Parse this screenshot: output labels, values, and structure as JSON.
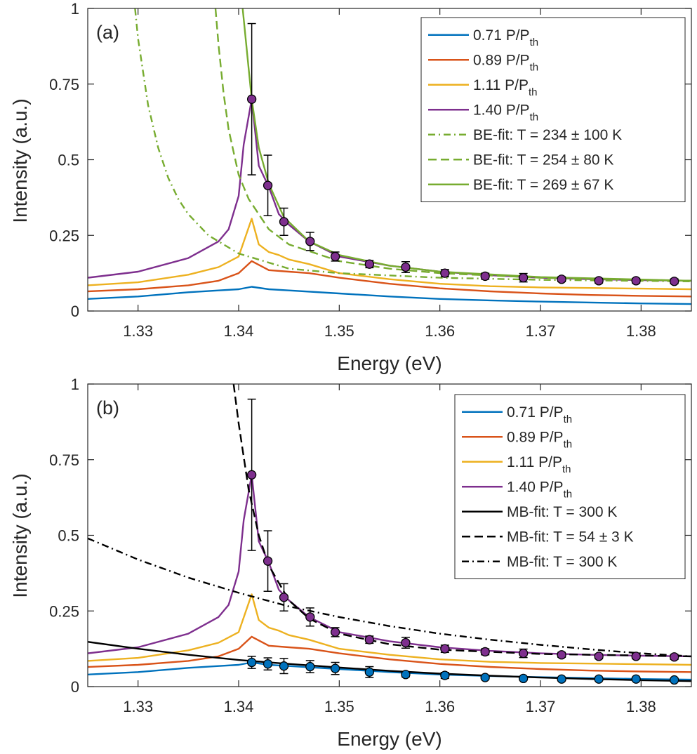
{
  "chart_data": [
    {
      "type": "line",
      "panel_label": "(a)",
      "xlabel": "Energy (eV)",
      "ylabel": "Intensity (a.u.)",
      "xlim": [
        1.325,
        1.385
      ],
      "ylim": [
        0,
        1
      ],
      "xticks": [
        1.33,
        1.34,
        1.35,
        1.36,
        1.37,
        1.38
      ],
      "xtick_labels": [
        "1.33",
        "1.34",
        "1.35",
        "1.36",
        "1.37",
        "1.38"
      ],
      "yticks": [
        0,
        0.25,
        0.5,
        0.75,
        1
      ],
      "ytick_labels": [
        "0",
        "0.25",
        "0.5",
        "0.75",
        "1"
      ],
      "grid": false,
      "legend_position": "top-right",
      "series": [
        {
          "name": "0.71 P/P",
          "subscript": "th",
          "color": "#0072BD",
          "style": "solid",
          "x": [
            1.325,
            1.33,
            1.335,
            1.338,
            1.34,
            1.3413,
            1.343,
            1.345,
            1.35,
            1.355,
            1.36,
            1.365,
            1.37,
            1.375,
            1.38,
            1.385
          ],
          "y": [
            0.04,
            0.048,
            0.062,
            0.068,
            0.072,
            0.08,
            0.072,
            0.068,
            0.058,
            0.048,
            0.04,
            0.035,
            0.031,
            0.028,
            0.025,
            0.023
          ]
        },
        {
          "name": "0.89 P/P",
          "subscript": "th",
          "color": "#D95319",
          "style": "solid",
          "x": [
            1.325,
            1.33,
            1.335,
            1.338,
            1.34,
            1.3413,
            1.343,
            1.345,
            1.347,
            1.35,
            1.355,
            1.36,
            1.365,
            1.37,
            1.375,
            1.38,
            1.385
          ],
          "y": [
            0.065,
            0.072,
            0.085,
            0.1,
            0.125,
            0.165,
            0.135,
            0.13,
            0.125,
            0.11,
            0.09,
            0.075,
            0.065,
            0.058,
            0.053,
            0.05,
            0.048
          ]
        },
        {
          "name": "1.11 P/P",
          "subscript": "th",
          "color": "#EDB120",
          "style": "solid",
          "x": [
            1.325,
            1.33,
            1.335,
            1.338,
            1.34,
            1.3413,
            1.342,
            1.343,
            1.344,
            1.345,
            1.347,
            1.35,
            1.355,
            1.36,
            1.365,
            1.37,
            1.375,
            1.38,
            1.385
          ],
          "y": [
            0.085,
            0.095,
            0.12,
            0.145,
            0.18,
            0.305,
            0.22,
            0.195,
            0.185,
            0.17,
            0.155,
            0.125,
            0.105,
            0.09,
            0.082,
            0.078,
            0.076,
            0.074,
            0.072
          ]
        },
        {
          "name": "1.40 P/P",
          "subscript": "th",
          "color": "#7E2F8E",
          "style": "solid",
          "x": [
            1.325,
            1.33,
            1.335,
            1.338,
            1.339,
            1.34,
            1.3405,
            1.3413,
            1.342,
            1.343,
            1.344,
            1.345,
            1.347,
            1.35,
            1.355,
            1.36,
            1.365,
            1.37,
            1.375,
            1.38,
            1.385
          ],
          "y": [
            0.11,
            0.13,
            0.175,
            0.23,
            0.27,
            0.38,
            0.55,
            0.7,
            0.48,
            0.41,
            0.32,
            0.285,
            0.23,
            0.18,
            0.15,
            0.13,
            0.118,
            0.11,
            0.105,
            0.102,
            0.1
          ]
        },
        {
          "name": "BE-fit: T = 234 ± 100 K",
          "color": "#77AC30",
          "style": "dashdot",
          "x": [
            1.3297,
            1.33,
            1.331,
            1.332,
            1.333,
            1.334,
            1.335,
            1.337,
            1.34,
            1.345,
            1.35,
            1.36,
            1.37,
            1.385
          ],
          "y": [
            1.0,
            0.9,
            0.68,
            0.54,
            0.44,
            0.37,
            0.32,
            0.25,
            0.19,
            0.14,
            0.125,
            0.11,
            0.103,
            0.098
          ]
        },
        {
          "name": "BE-fit: T = 254 ± 80 K",
          "color": "#77AC30",
          "style": "dashed",
          "x": [
            1.3377,
            1.338,
            1.3385,
            1.339,
            1.34,
            1.341,
            1.343,
            1.345,
            1.35,
            1.355,
            1.36,
            1.37,
            1.385
          ],
          "y": [
            1.0,
            0.88,
            0.72,
            0.6,
            0.45,
            0.37,
            0.27,
            0.22,
            0.165,
            0.14,
            0.125,
            0.11,
            0.1
          ]
        },
        {
          "name": "BE-fit: T = 269 ± 67 K",
          "color": "#77AC30",
          "style": "solid",
          "x": [
            1.3404,
            1.3407,
            1.341,
            1.3413,
            1.342,
            1.343,
            1.3445,
            1.347,
            1.35,
            1.355,
            1.36,
            1.37,
            1.385
          ],
          "y": [
            1.0,
            0.9,
            0.8,
            0.7,
            0.54,
            0.42,
            0.31,
            0.23,
            0.185,
            0.15,
            0.13,
            0.112,
            0.1
          ]
        }
      ],
      "points": {
        "color": "#7E2F8E",
        "x": [
          1.3413,
          1.3429,
          1.3445,
          1.3471,
          1.3496,
          1.353,
          1.3566,
          1.3605,
          1.3645,
          1.3683,
          1.3721,
          1.3758,
          1.3795,
          1.3833
        ],
        "y": [
          0.7,
          0.415,
          0.295,
          0.23,
          0.18,
          0.155,
          0.145,
          0.125,
          0.115,
          0.11,
          0.105,
          0.1,
          0.1,
          0.098
        ],
        "err": [
          0.25,
          0.1,
          0.045,
          0.03,
          0.015,
          0.012,
          0.018,
          0.012,
          0.01,
          0.014,
          0.008,
          0.008,
          0.008,
          0.008
        ]
      }
    },
    {
      "type": "line",
      "panel_label": "(b)",
      "xlabel": "Energy (eV)",
      "ylabel": "Intensity (a.u.)",
      "xlim": [
        1.325,
        1.385
      ],
      "ylim": [
        0,
        1
      ],
      "xticks": [
        1.33,
        1.34,
        1.35,
        1.36,
        1.37,
        1.38
      ],
      "xtick_labels": [
        "1.33",
        "1.34",
        "1.35",
        "1.36",
        "1.37",
        "1.38"
      ],
      "yticks": [
        0,
        0.25,
        0.5,
        0.75,
        1
      ],
      "ytick_labels": [
        "0",
        "0.25",
        "0.5",
        "0.75",
        "1"
      ],
      "grid": false,
      "legend_position": "top-right",
      "series": [
        {
          "name": "0.71 P/P",
          "subscript": "th",
          "color": "#0072BD",
          "style": "solid",
          "x": [
            1.325,
            1.33,
            1.335,
            1.338,
            1.34,
            1.3413,
            1.343,
            1.345,
            1.35,
            1.355,
            1.36,
            1.365,
            1.37,
            1.375,
            1.38,
            1.385
          ],
          "y": [
            0.04,
            0.048,
            0.062,
            0.068,
            0.072,
            0.08,
            0.072,
            0.068,
            0.058,
            0.048,
            0.04,
            0.035,
            0.031,
            0.028,
            0.025,
            0.023
          ]
        },
        {
          "name": "0.89 P/P",
          "subscript": "th",
          "color": "#D95319",
          "style": "solid",
          "x": [
            1.325,
            1.33,
            1.335,
            1.338,
            1.34,
            1.3413,
            1.343,
            1.345,
            1.347,
            1.35,
            1.355,
            1.36,
            1.365,
            1.37,
            1.375,
            1.38,
            1.385
          ],
          "y": [
            0.065,
            0.072,
            0.085,
            0.1,
            0.125,
            0.165,
            0.135,
            0.13,
            0.125,
            0.11,
            0.09,
            0.075,
            0.065,
            0.058,
            0.053,
            0.05,
            0.048
          ]
        },
        {
          "name": "1.11 P/P",
          "subscript": "th",
          "color": "#EDB120",
          "style": "solid",
          "x": [
            1.325,
            1.33,
            1.335,
            1.338,
            1.34,
            1.3413,
            1.342,
            1.343,
            1.344,
            1.345,
            1.347,
            1.35,
            1.355,
            1.36,
            1.365,
            1.37,
            1.375,
            1.38,
            1.385
          ],
          "y": [
            0.085,
            0.095,
            0.12,
            0.145,
            0.18,
            0.305,
            0.22,
            0.195,
            0.185,
            0.17,
            0.155,
            0.125,
            0.105,
            0.09,
            0.082,
            0.078,
            0.076,
            0.074,
            0.072
          ]
        },
        {
          "name": "1.40 P/P",
          "subscript": "th",
          "color": "#7E2F8E",
          "style": "solid",
          "x": [
            1.325,
            1.33,
            1.335,
            1.338,
            1.339,
            1.34,
            1.3405,
            1.3413,
            1.342,
            1.343,
            1.344,
            1.345,
            1.347,
            1.35,
            1.355,
            1.36,
            1.365,
            1.37,
            1.375,
            1.38,
            1.385
          ],
          "y": [
            0.11,
            0.13,
            0.175,
            0.23,
            0.27,
            0.38,
            0.55,
            0.7,
            0.48,
            0.41,
            0.32,
            0.285,
            0.23,
            0.18,
            0.15,
            0.13,
            0.118,
            0.11,
            0.105,
            0.102,
            0.1
          ]
        },
        {
          "name": "MB-fit: T = 300 K",
          "color": "#000000",
          "style": "solid",
          "x": [
            1.325,
            1.33,
            1.335,
            1.34,
            1.345,
            1.35,
            1.355,
            1.36,
            1.365,
            1.37,
            1.375,
            1.38,
            1.385
          ],
          "y": [
            0.148,
            0.125,
            0.105,
            0.088,
            0.075,
            0.063,
            0.052,
            0.043,
            0.036,
            0.03,
            0.025,
            0.021,
            0.018
          ]
        },
        {
          "name": "MB-fit: T = 54 ± 3 K",
          "color": "#000000",
          "style": "dashed",
          "x": [
            1.3395,
            1.34,
            1.341,
            1.342,
            1.343,
            1.345,
            1.347,
            1.35,
            1.355,
            1.36,
            1.37,
            1.385
          ],
          "y": [
            1.0,
            0.87,
            0.65,
            0.5,
            0.4,
            0.285,
            0.225,
            0.175,
            0.14,
            0.122,
            0.108,
            0.1
          ]
        },
        {
          "name": "MB-fit: T = 300 K",
          "color": "#000000",
          "style": "dashdot",
          "x": [
            1.325,
            1.33,
            1.335,
            1.34,
            1.345,
            1.35,
            1.355,
            1.36,
            1.365,
            1.37,
            1.375,
            1.38,
            1.385
          ],
          "y": [
            0.49,
            0.42,
            0.36,
            0.31,
            0.265,
            0.23,
            0.2,
            0.175,
            0.155,
            0.138,
            0.123,
            0.11,
            0.1
          ]
        }
      ],
      "points": {
        "color": "#7E2F8E",
        "x": [
          1.3413,
          1.3429,
          1.3445,
          1.3471,
          1.3496,
          1.353,
          1.3566,
          1.3605,
          1.3645,
          1.3683,
          1.3721,
          1.3758,
          1.3795,
          1.3833
        ],
        "y": [
          0.7,
          0.415,
          0.295,
          0.23,
          0.18,
          0.155,
          0.145,
          0.125,
          0.115,
          0.11,
          0.105,
          0.1,
          0.1,
          0.098
        ],
        "err": [
          0.25,
          0.1,
          0.045,
          0.03,
          0.015,
          0.012,
          0.018,
          0.012,
          0.01,
          0.014,
          0.008,
          0.008,
          0.008,
          0.008
        ]
      },
      "points_low": {
        "color": "#0072BD",
        "x": [
          1.3413,
          1.3429,
          1.3445,
          1.3471,
          1.3496,
          1.353,
          1.3566,
          1.3605,
          1.3645,
          1.3683,
          1.3721,
          1.3758,
          1.3795,
          1.3833
        ],
        "y": [
          0.08,
          0.075,
          0.068,
          0.066,
          0.06,
          0.048,
          0.04,
          0.037,
          0.03,
          0.027,
          0.025,
          0.025,
          0.025,
          0.022
        ],
        "err": [
          0.02,
          0.02,
          0.025,
          0.02,
          0.02,
          0.018,
          0.008,
          0.01,
          0.006,
          0.005,
          0.005,
          0.005,
          0.005,
          0.005
        ]
      }
    }
  ]
}
